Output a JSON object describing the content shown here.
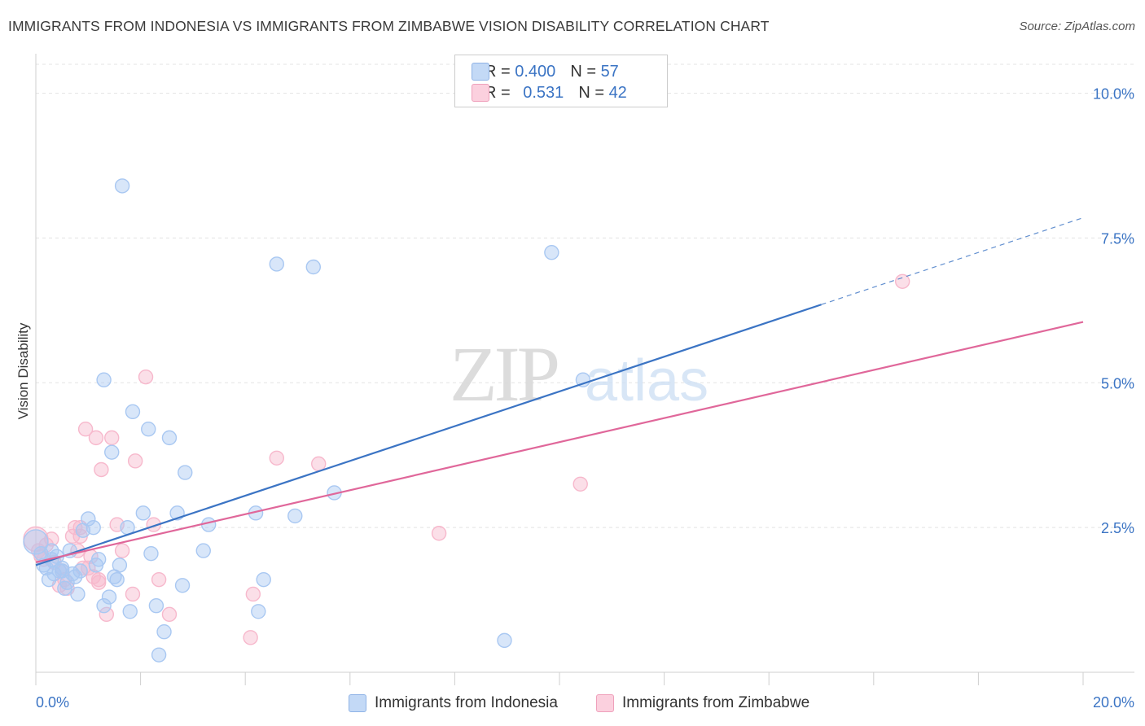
{
  "title": "IMMIGRANTS FROM INDONESIA VS IMMIGRANTS FROM ZIMBABWE VISION DISABILITY CORRELATION CHART",
  "source": "Source: ZipAtlas.com",
  "watermark": {
    "zip": "ZIP",
    "atlas": "atlas"
  },
  "legend_top": {
    "rows": [
      {
        "r_label": "R = ",
        "r_value": "0.400",
        "n_label": "N = ",
        "n_value": "57",
        "color": "#a9c8f2"
      },
      {
        "r_label": "R = ",
        "r_value": "0.531",
        "n_label": "N = ",
        "n_value": "42",
        "color": "#f7b8cc"
      }
    ]
  },
  "legend_bottom": [
    {
      "label": "Immigrants from Indonesia",
      "color": "#a9c8f2"
    },
    {
      "label": "Immigrants from Zimbabwe",
      "color": "#f7b8cc"
    }
  ],
  "chart_data": {
    "type": "scatter",
    "ylabel": "Vision Disability",
    "xlabel": "",
    "xlim": [
      0,
      20
    ],
    "ylim": [
      0,
      10.5
    ],
    "x_tick_labels": [
      {
        "value": 0,
        "label": "0.0%"
      },
      {
        "value": 20,
        "label": "20.0%"
      }
    ],
    "y_tick_labels": [
      {
        "value": 2.5,
        "label": "2.5%"
      },
      {
        "value": 5.0,
        "label": "5.0%"
      },
      {
        "value": 7.5,
        "label": "7.5%"
      },
      {
        "value": 10.0,
        "label": "10.0%"
      }
    ],
    "x_minor_ticks": [
      0,
      2,
      4,
      6,
      8,
      10,
      12,
      14,
      16,
      18,
      20
    ],
    "grid": true,
    "series": [
      {
        "name": "Immigrants from Indonesia",
        "color": "#3b74c4",
        "fill": "#a9c8f2",
        "points": [
          [
            0.0,
            2.25
          ],
          [
            0.1,
            2.05
          ],
          [
            0.15,
            1.85
          ],
          [
            0.2,
            1.8
          ],
          [
            0.25,
            1.6
          ],
          [
            0.3,
            1.95
          ],
          [
            0.35,
            1.7
          ],
          [
            0.4,
            2.0
          ],
          [
            0.45,
            1.75
          ],
          [
            0.5,
            1.8
          ],
          [
            0.55,
            1.45
          ],
          [
            0.6,
            1.55
          ],
          [
            0.7,
            1.7
          ],
          [
            0.75,
            1.65
          ],
          [
            0.8,
            1.35
          ],
          [
            0.85,
            1.75
          ],
          [
            0.9,
            2.45
          ],
          [
            1.0,
            2.65
          ],
          [
            1.1,
            2.5
          ],
          [
            1.15,
            1.85
          ],
          [
            1.2,
            1.95
          ],
          [
            1.3,
            1.15
          ],
          [
            1.4,
            1.3
          ],
          [
            1.45,
            3.8
          ],
          [
            1.5,
            1.65
          ],
          [
            1.55,
            1.6
          ],
          [
            1.6,
            1.85
          ],
          [
            1.65,
            8.4
          ],
          [
            1.75,
            2.5
          ],
          [
            1.8,
            1.05
          ],
          [
            1.85,
            4.5
          ],
          [
            2.05,
            2.75
          ],
          [
            2.15,
            4.2
          ],
          [
            2.2,
            2.05
          ],
          [
            2.3,
            1.15
          ],
          [
            2.35,
            0.3
          ],
          [
            2.45,
            0.7
          ],
          [
            2.55,
            4.05
          ],
          [
            2.7,
            2.75
          ],
          [
            2.8,
            1.5
          ],
          [
            2.85,
            3.45
          ],
          [
            1.3,
            5.05
          ],
          [
            3.2,
            2.1
          ],
          [
            3.3,
            2.55
          ],
          [
            4.2,
            2.75
          ],
          [
            4.25,
            1.05
          ],
          [
            4.35,
            1.6
          ],
          [
            4.6,
            7.05
          ],
          [
            4.95,
            2.7
          ],
          [
            5.3,
            7.0
          ],
          [
            5.7,
            3.1
          ],
          [
            8.95,
            0.55
          ],
          [
            9.85,
            7.25
          ],
          [
            10.45,
            5.05
          ],
          [
            0.5,
            1.75
          ],
          [
            0.3,
            2.1
          ],
          [
            0.65,
            2.1
          ]
        ],
        "trend": {
          "x0": 0,
          "y0": 1.85,
          "x1": 15.0,
          "y1": 6.35,
          "dash_x1": 20,
          "dash_y1": 7.85
        }
      },
      {
        "name": "Immigrants from Zimbabwe",
        "color": "#e0679a",
        "fill": "#f7b8cc",
        "points": [
          [
            0.0,
            2.3
          ],
          [
            0.05,
            2.1
          ],
          [
            0.1,
            2.0
          ],
          [
            0.15,
            1.95
          ],
          [
            0.2,
            2.2
          ],
          [
            0.3,
            2.3
          ],
          [
            0.35,
            1.9
          ],
          [
            0.45,
            1.5
          ],
          [
            0.5,
            1.75
          ],
          [
            0.55,
            1.6
          ],
          [
            0.6,
            1.45
          ],
          [
            0.7,
            2.35
          ],
          [
            0.75,
            2.5
          ],
          [
            0.8,
            2.1
          ],
          [
            0.85,
            2.35
          ],
          [
            0.9,
            1.8
          ],
          [
            0.95,
            4.2
          ],
          [
            1.0,
            1.8
          ],
          [
            1.05,
            2.0
          ],
          [
            1.1,
            1.65
          ],
          [
            1.15,
            4.05
          ],
          [
            1.2,
            1.55
          ],
          [
            1.25,
            3.5
          ],
          [
            1.35,
            1.0
          ],
          [
            1.45,
            4.05
          ],
          [
            1.55,
            2.55
          ],
          [
            1.65,
            2.1
          ],
          [
            1.85,
            1.35
          ],
          [
            1.9,
            3.65
          ],
          [
            2.1,
            5.1
          ],
          [
            2.25,
            2.55
          ],
          [
            2.35,
            1.6
          ],
          [
            2.55,
            1.0
          ],
          [
            4.1,
            0.6
          ],
          [
            4.15,
            1.35
          ],
          [
            4.6,
            3.7
          ],
          [
            5.4,
            3.6
          ],
          [
            7.7,
            2.4
          ],
          [
            10.4,
            3.25
          ],
          [
            16.55,
            6.75
          ],
          [
            0.85,
            2.5
          ],
          [
            1.2,
            1.6
          ]
        ],
        "trend": {
          "x0": 0,
          "y0": 1.9,
          "x1": 20,
          "y1": 6.05
        }
      }
    ]
  }
}
